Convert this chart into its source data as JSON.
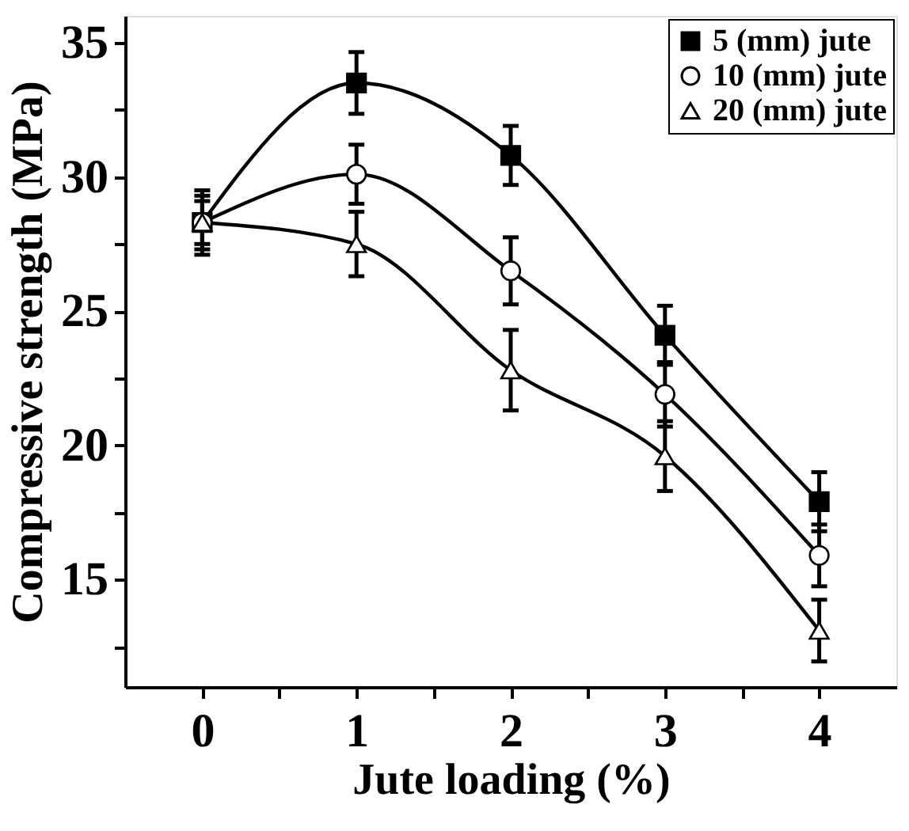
{
  "chart_data": {
    "type": "line",
    "xlabel": "Jute loading (%)",
    "ylabel": "Compressive strength (MPa)",
    "x": [
      0,
      1,
      2,
      3,
      4
    ],
    "xlim": [
      -0.5,
      4.5
    ],
    "xticks": [
      0,
      {
        "value": 0.5,
        "label": null
      },
      1,
      {
        "value": 1.5,
        "label": null
      },
      2,
      {
        "value": 2.5,
        "label": null
      },
      3,
      {
        "value": 3.5,
        "label": null
      },
      4
    ],
    "ylim": [
      11,
      36
    ],
    "yticks": [
      {
        "value": 12.5,
        "label": null
      },
      15,
      {
        "value": 17.5,
        "label": null
      },
      20,
      {
        "value": 22.5,
        "label": null
      },
      25,
      {
        "value": 27.5,
        "label": null
      },
      30,
      {
        "value": 32.5,
        "label": null
      },
      35
    ],
    "grid": false,
    "legend": "top right",
    "line_style": "solid",
    "series": [
      {
        "name": "5 (mm) jute",
        "color": "#000000",
        "marker": "square",
        "values": [
          28.3,
          33.5,
          30.8,
          24.1,
          17.9
        ],
        "errors": [
          1.2,
          1.15,
          1.1,
          1.1,
          1.1
        ]
      },
      {
        "name": "10 (mm) jute",
        "color": "#000000",
        "marker": "circle",
        "values": [
          28.3,
          30.1,
          26.5,
          21.9,
          15.9
        ],
        "errors": [
          1.0,
          1.1,
          1.25,
          1.2,
          1.15
        ]
      },
      {
        "name": "20 (mm) jute",
        "color": "#000000",
        "marker": "triangle",
        "values": [
          28.3,
          27.5,
          22.8,
          19.6,
          13.1
        ],
        "errors": [
          0.8,
          1.2,
          1.5,
          1.3,
          1.15
        ]
      }
    ]
  }
}
